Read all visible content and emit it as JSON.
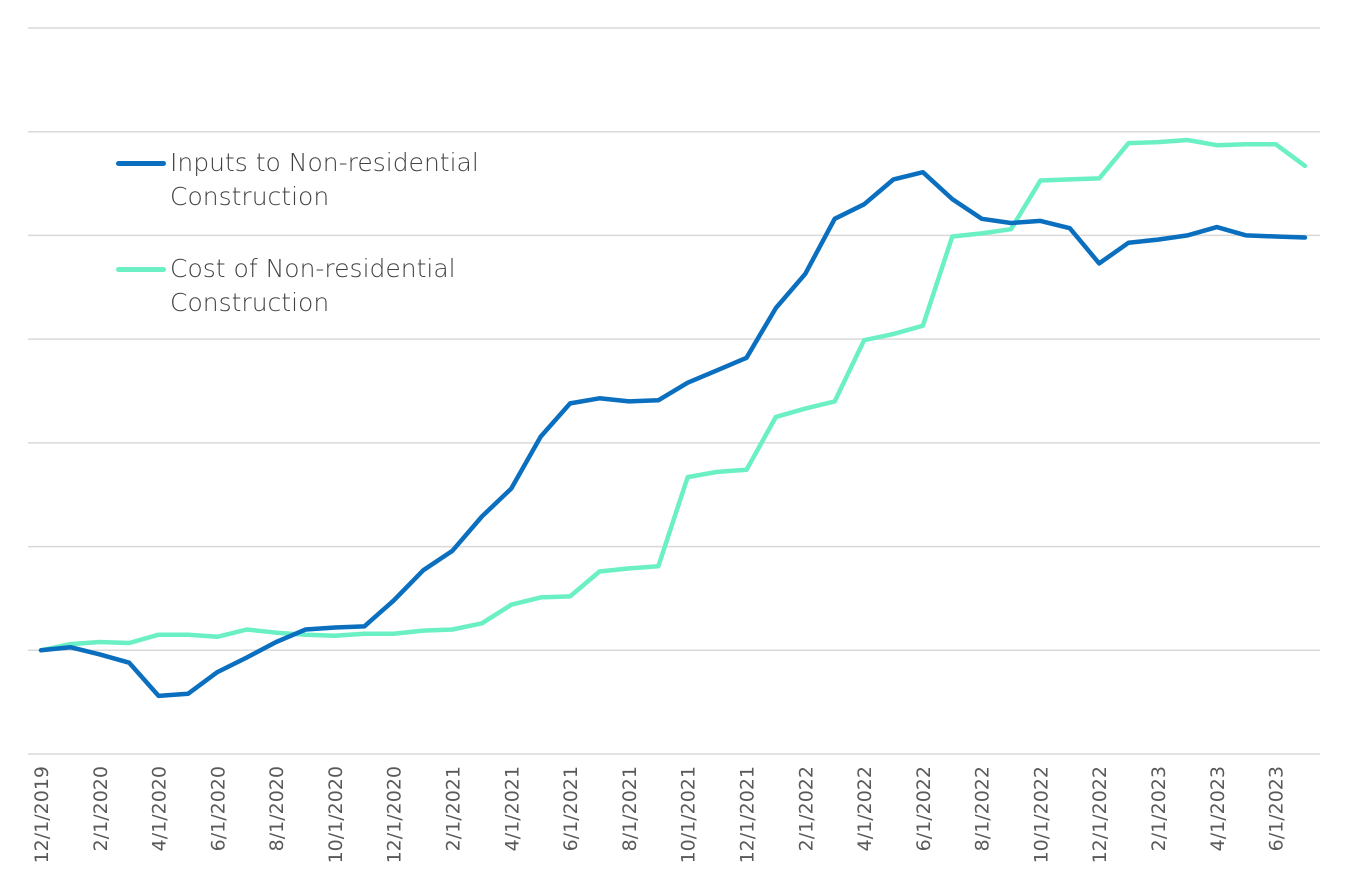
{
  "chart_data": {
    "type": "line",
    "title": "",
    "xlabel": "",
    "ylabel": "",
    "grid": true,
    "legend_position": "top-left",
    "x": [
      "12/1/2019",
      "1/1/2020",
      "2/1/2020",
      "3/1/2020",
      "4/1/2020",
      "5/1/2020",
      "6/1/2020",
      "7/1/2020",
      "8/1/2020",
      "9/1/2020",
      "10/1/2020",
      "11/1/2020",
      "12/1/2020",
      "1/1/2021",
      "2/1/2021",
      "3/1/2021",
      "4/1/2021",
      "5/1/2021",
      "6/1/2021",
      "7/1/2021",
      "8/1/2021",
      "9/1/2021",
      "10/1/2021",
      "11/1/2021",
      "12/1/2021",
      "1/1/2022",
      "2/1/2022",
      "3/1/2022",
      "4/1/2022",
      "5/1/2022",
      "6/1/2022",
      "7/1/2022",
      "8/1/2022",
      "9/1/2022",
      "10/1/2022",
      "11/1/2022",
      "12/1/2022",
      "1/1/2023",
      "2/1/2023",
      "3/1/2023",
      "4/1/2023",
      "5/1/2023",
      "6/1/2023",
      "7/1/2023"
    ],
    "x_tick_labels": [
      "12/1/2019",
      "2/1/2020",
      "4/1/2020",
      "6/1/2020",
      "8/1/2020",
      "10/1/2020",
      "12/1/2020",
      "2/1/2021",
      "4/1/2021",
      "6/1/2021",
      "8/1/2021",
      "10/1/2021",
      "12/1/2021",
      "2/1/2022",
      "4/1/2022",
      "6/1/2022",
      "8/1/2022",
      "10/1/2022",
      "12/1/2022",
      "2/1/2023",
      "4/1/2023",
      "6/1/2023"
    ],
    "ylim": [
      -1,
      6
    ],
    "y_gridlines": [
      -1,
      0,
      1,
      2,
      3,
      4,
      5,
      6
    ],
    "series": [
      {
        "name": "Inputs to Non-residential Construction",
        "color": "#0a6fbf",
        "values": [
          0.0,
          0.03,
          -0.04,
          -0.12,
          -0.44,
          -0.42,
          -0.21,
          -0.07,
          0.08,
          0.2,
          0.22,
          0.23,
          0.48,
          0.77,
          0.96,
          1.29,
          1.56,
          2.06,
          2.38,
          2.43,
          2.4,
          2.41,
          2.58,
          2.7,
          2.82,
          3.3,
          3.63,
          4.16,
          4.3,
          4.54,
          4.61,
          4.35,
          4.16,
          4.12,
          4.14,
          4.07,
          3.73,
          3.93,
          3.96,
          4.0,
          4.08,
          4.0,
          3.99,
          3.98
        ]
      },
      {
        "name": "Cost of Non-residential Construction",
        "color": "#6af0c4",
        "values": [
          0.0,
          0.06,
          0.08,
          0.07,
          0.15,
          0.15,
          0.13,
          0.2,
          0.17,
          0.15,
          0.14,
          0.16,
          0.16,
          0.19,
          0.2,
          0.26,
          0.44,
          0.51,
          0.52,
          0.76,
          0.79,
          0.81,
          1.67,
          1.72,
          1.74,
          2.25,
          2.33,
          2.4,
          2.99,
          3.05,
          3.13,
          3.99,
          4.02,
          4.06,
          4.53,
          4.54,
          4.55,
          4.89,
          4.9,
          4.92,
          4.87,
          4.88,
          4.88,
          4.67
        ]
      }
    ]
  }
}
